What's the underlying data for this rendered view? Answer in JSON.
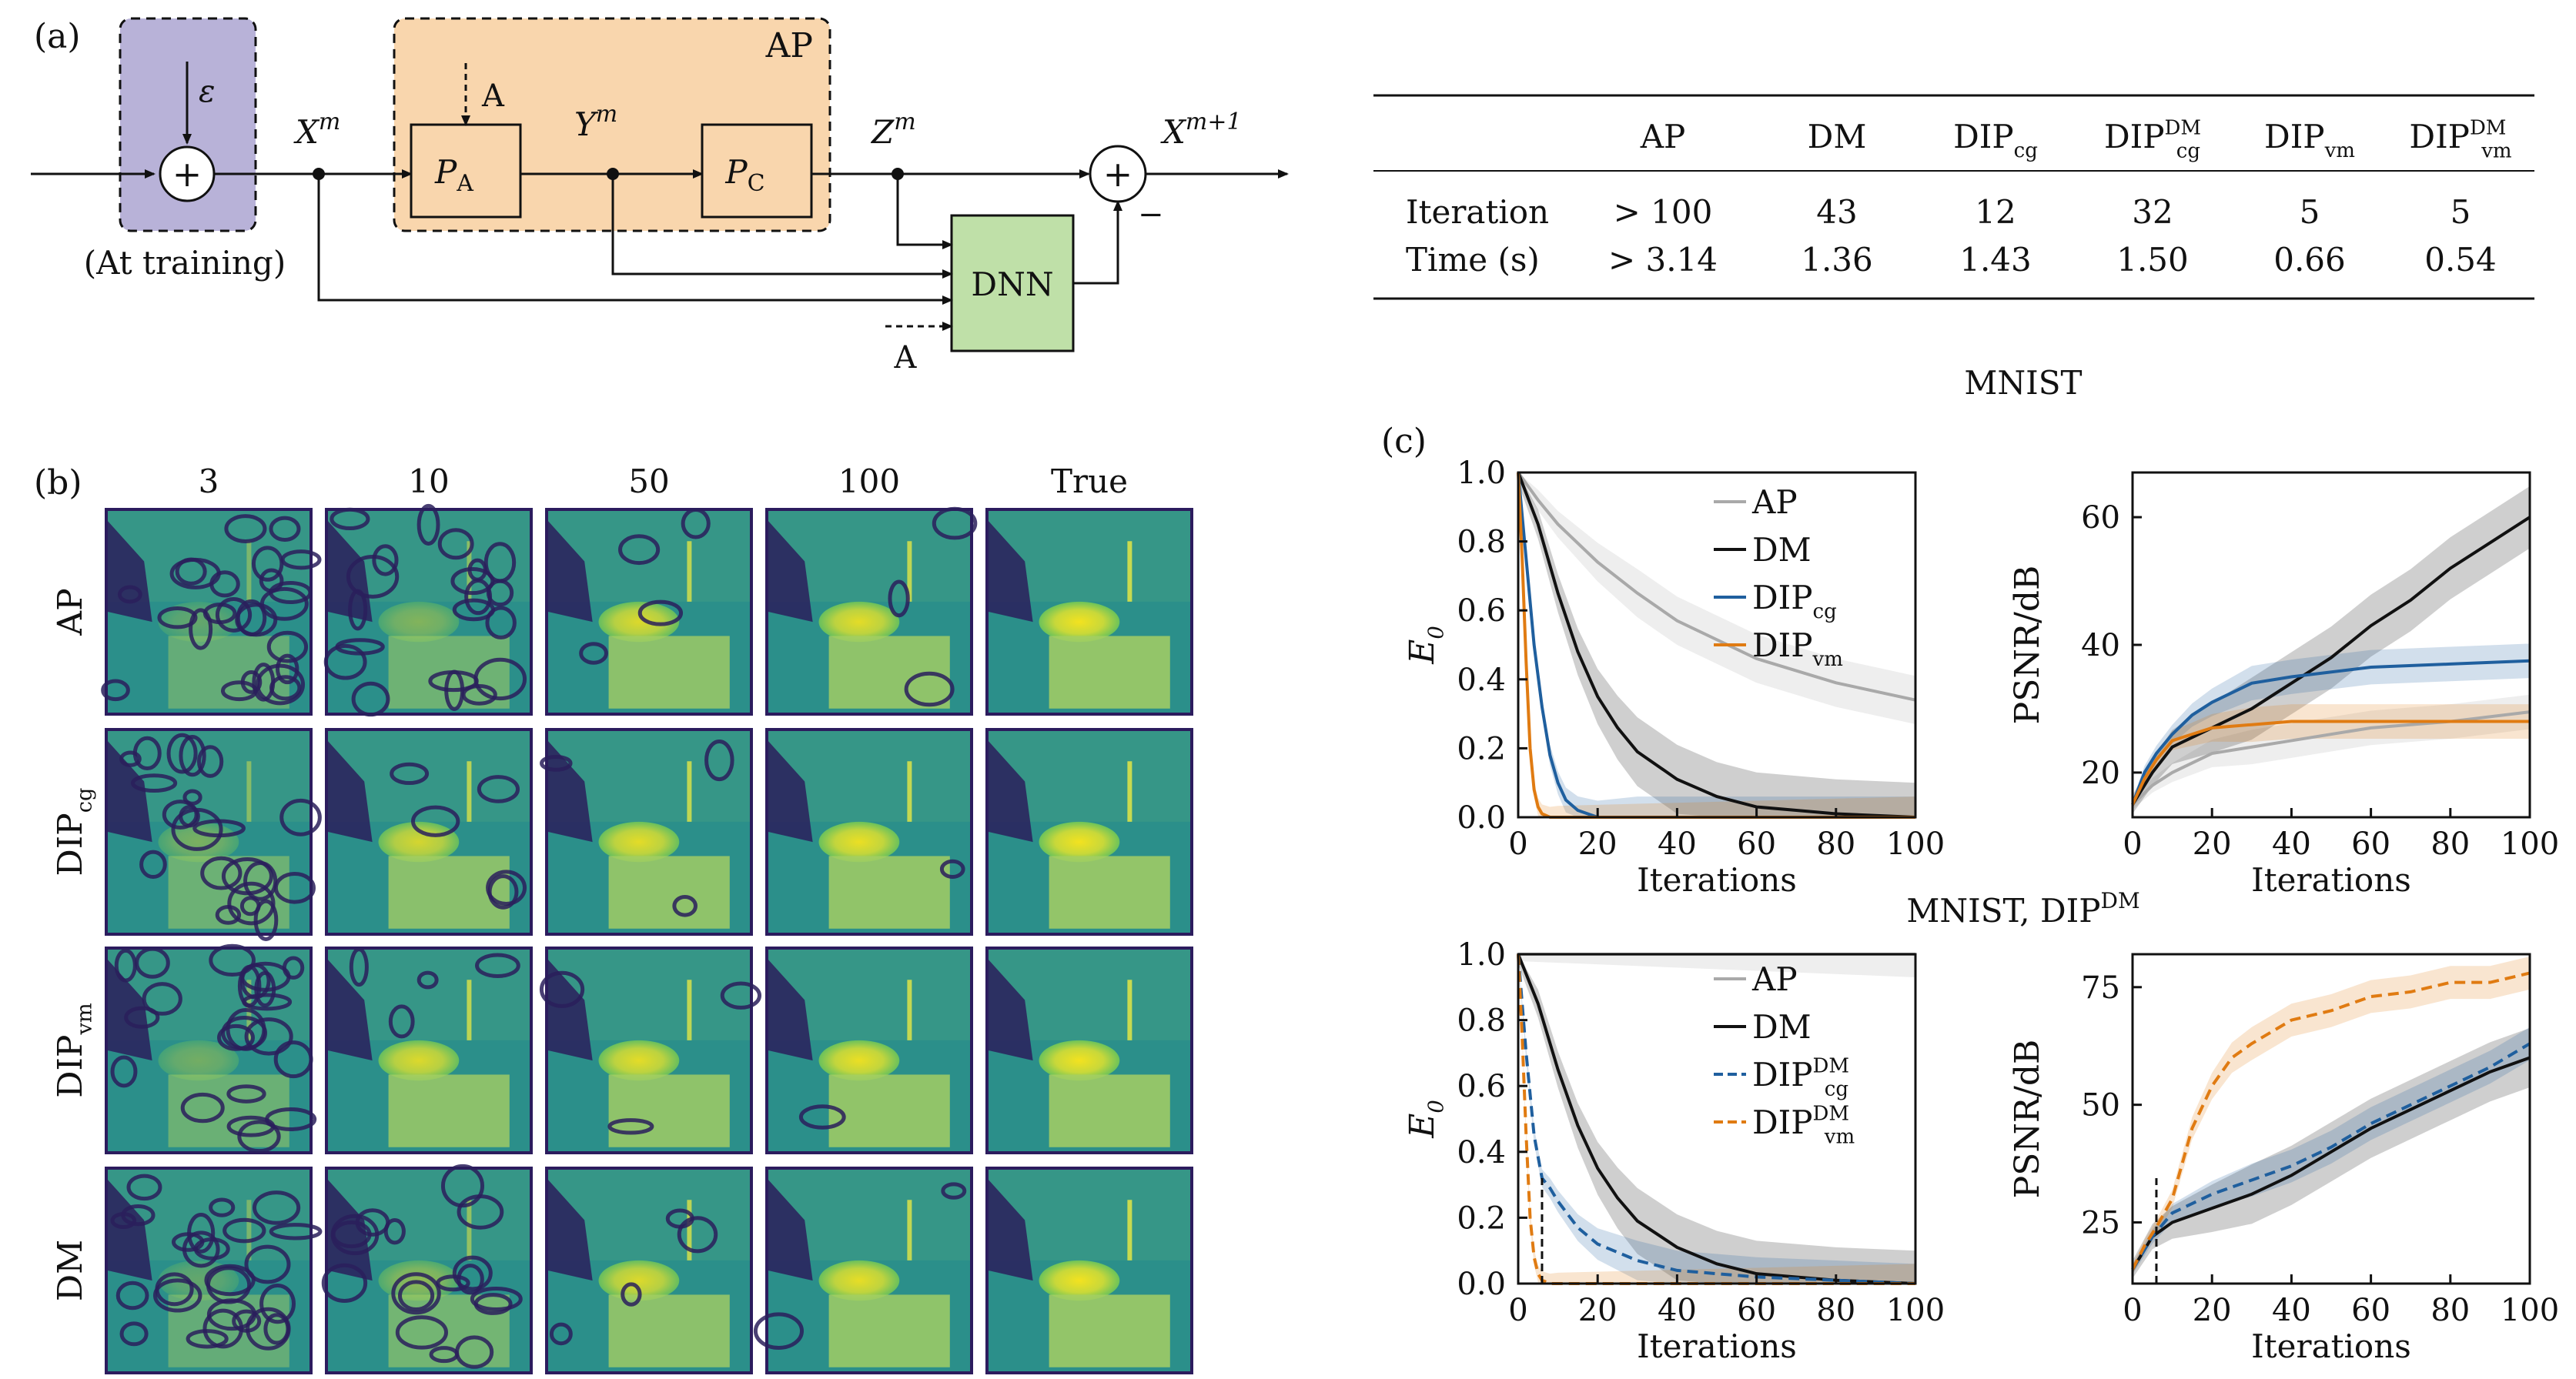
{
  "panel_a": {
    "label": "(a)",
    "box_ap": "AP",
    "eps": "ε",
    "training_note": "(At training)",
    "x_m": "X",
    "x_m_sup": "m",
    "y_m": "Y",
    "y_m_sup": "m",
    "z_m": "Z",
    "z_m_sup": "m",
    "x_next": "X",
    "x_next_sup": "m+1",
    "pa": "P",
    "pa_sub": "A",
    "pc": "P",
    "pc_sub": "C",
    "dnn": "DNN",
    "a_top": "A",
    "a_bottom": "A",
    "plus": "+",
    "minus": "−"
  },
  "table": {
    "headers": [
      "AP",
      "DM",
      "DIP",
      "DIP",
      "DIP",
      "DIP"
    ],
    "header_subs": [
      "",
      "",
      "cg",
      "cg",
      "vm",
      "vm"
    ],
    "header_sups": [
      "",
      "",
      "",
      "DM",
      "",
      "DM"
    ],
    "row_labels": [
      "Iteration",
      "Time (s)"
    ],
    "rows": [
      [
        "> 100",
        "43",
        "12",
        "32",
        "5",
        "5"
      ],
      [
        "> 3.14",
        "1.36",
        "1.43",
        "1.50",
        "0.66",
        "0.54"
      ]
    ]
  },
  "panel_b": {
    "label": "(b)",
    "col_headers": [
      "3",
      "10",
      "50",
      "100",
      "True"
    ],
    "row_labels": [
      "AP",
      "DIP",
      "DIP",
      "DM"
    ],
    "row_subs": [
      "",
      "cg",
      "vm",
      ""
    ]
  },
  "panel_c": {
    "label": "(c)",
    "title_top": "MNIST",
    "title_bottom": "MNIST, DIP",
    "title_bottom_sup": "DM",
    "xlabel": "Iterations",
    "ylabel_e": "E",
    "ylabel_e_sub": "0",
    "ylabel_psnr": "PSNR/dB",
    "legend_top": [
      {
        "name": "AP",
        "sub": "",
        "sup": ""
      },
      {
        "name": "DM",
        "sub": "",
        "sup": ""
      },
      {
        "name": "DIP",
        "sub": "cg",
        "sup": ""
      },
      {
        "name": "DIP",
        "sub": "vm",
        "sup": ""
      }
    ],
    "legend_bottom": [
      {
        "name": "AP",
        "sub": "",
        "sup": ""
      },
      {
        "name": "DM",
        "sub": "",
        "sup": ""
      },
      {
        "name": "DIP",
        "sub": "cg",
        "sup": "DM"
      },
      {
        "name": "DIP",
        "sub": "vm",
        "sup": "DM"
      }
    ]
  },
  "colors": {
    "ap_box": "#b8b2d8",
    "proj_box": "#f9d6ad",
    "dnn_box": "#bfe0a8",
    "ap": "#a9a9a9",
    "dm": "#111111",
    "cg": "#1f5f9e",
    "vm": "#e07b12"
  },
  "chart_data": [
    {
      "type": "line",
      "title": "MNIST",
      "xlabel": "Iterations",
      "ylabel": "E0",
      "xlim": [
        0,
        100
      ],
      "ylim": [
        0,
        1.0
      ],
      "xticks": [
        0,
        20,
        40,
        60,
        80,
        100
      ],
      "yticks": [
        0,
        0.2,
        0.4,
        0.6,
        0.8,
        1.0
      ],
      "legend": "top-right",
      "series": [
        {
          "name": "AP",
          "x": [
            0,
            5,
            10,
            20,
            30,
            40,
            60,
            80,
            100
          ],
          "y": [
            1.0,
            0.92,
            0.85,
            0.74,
            0.65,
            0.57,
            0.46,
            0.39,
            0.34
          ]
        },
        {
          "name": "DM",
          "x": [
            0,
            5,
            10,
            15,
            20,
            25,
            30,
            40,
            50,
            60,
            70,
            80,
            100
          ],
          "y": [
            1.0,
            0.85,
            0.65,
            0.48,
            0.35,
            0.26,
            0.19,
            0.11,
            0.06,
            0.03,
            0.02,
            0.01,
            0.0
          ]
        },
        {
          "name": "DIPcg",
          "x": [
            0,
            2,
            4,
            6,
            8,
            10,
            12,
            15,
            20,
            30,
            100
          ],
          "y": [
            1.0,
            0.75,
            0.5,
            0.32,
            0.18,
            0.1,
            0.05,
            0.02,
            0.0,
            0.0,
            0.0
          ]
        },
        {
          "name": "DIPvm",
          "x": [
            0,
            1,
            2,
            3,
            4,
            5,
            6,
            8,
            10,
            100
          ],
          "y": [
            1.0,
            0.75,
            0.45,
            0.2,
            0.08,
            0.03,
            0.01,
            0.0,
            0.0,
            0.0
          ]
        }
      ]
    },
    {
      "type": "line",
      "title": "MNIST",
      "xlabel": "Iterations",
      "ylabel": "PSNR/dB",
      "xlim": [
        0,
        100
      ],
      "ylim": [
        13,
        67
      ],
      "xticks": [
        0,
        20,
        40,
        60,
        80,
        100
      ],
      "yticks": [
        20,
        40,
        60
      ],
      "series": [
        {
          "name": "AP",
          "x": [
            0,
            5,
            10,
            20,
            30,
            40,
            60,
            80,
            100
          ],
          "y": [
            15,
            18,
            20,
            23,
            24,
            25,
            27,
            28,
            29.5
          ]
        },
        {
          "name": "DM",
          "x": [
            0,
            5,
            10,
            20,
            30,
            40,
            50,
            60,
            70,
            80,
            90,
            100
          ],
          "y": [
            15,
            20,
            24,
            27,
            30,
            34,
            38,
            43,
            47,
            52,
            56,
            60
          ]
        },
        {
          "name": "DIPcg",
          "x": [
            0,
            3,
            6,
            10,
            15,
            20,
            30,
            40,
            60,
            80,
            100
          ],
          "y": [
            15,
            20,
            23,
            26,
            29,
            31,
            34,
            35,
            36.5,
            37,
            37.5
          ]
        },
        {
          "name": "DIPvm",
          "x": [
            0,
            3,
            6,
            10,
            15,
            20,
            30,
            40,
            60,
            80,
            100
          ],
          "y": [
            15,
            19,
            22,
            25,
            26,
            27,
            27.5,
            28,
            28,
            28,
            28
          ]
        }
      ]
    },
    {
      "type": "line",
      "title": "MNIST, DIPDM",
      "xlabel": "Iterations",
      "ylabel": "E0",
      "xlim": [
        0,
        100
      ],
      "ylim": [
        0,
        1.0
      ],
      "xticks": [
        0,
        20,
        40,
        60,
        80,
        100
      ],
      "yticks": [
        0,
        0.2,
        0.4,
        0.6,
        0.8,
        1.0
      ],
      "legend": "top-right",
      "series": [
        {
          "name": "AP",
          "x": [
            0,
            100
          ],
          "y": [
            1.0,
            1.0
          ]
        },
        {
          "name": "DM",
          "x": [
            0,
            5,
            10,
            15,
            20,
            25,
            30,
            40,
            50,
            60,
            70,
            80,
            100
          ],
          "y": [
            1.0,
            0.85,
            0.65,
            0.48,
            0.35,
            0.26,
            0.19,
            0.11,
            0.06,
            0.03,
            0.02,
            0.01,
            0.0
          ]
        },
        {
          "name": "DIPcgDM",
          "x": [
            0,
            2,
            4,
            6,
            8,
            10,
            15,
            20,
            30,
            40,
            60,
            80,
            100
          ],
          "y": [
            1.0,
            0.7,
            0.45,
            0.32,
            0.29,
            0.25,
            0.17,
            0.12,
            0.07,
            0.04,
            0.02,
            0.01,
            0.0
          ]
        },
        {
          "name": "DIPvmDM",
          "x": [
            0,
            1,
            2,
            3,
            4,
            5,
            6,
            8,
            10,
            100
          ],
          "y": [
            1.0,
            0.75,
            0.45,
            0.2,
            0.08,
            0.03,
            0.01,
            0.0,
            0.0,
            0.0
          ]
        }
      ]
    },
    {
      "type": "line",
      "title": "MNIST, DIPDM",
      "xlabel": "Iterations",
      "ylabel": "PSNR/dB",
      "xlim": [
        0,
        100
      ],
      "ylim": [
        12,
        82
      ],
      "xticks": [
        0,
        20,
        40,
        60,
        80,
        100
      ],
      "yticks": [
        25,
        50,
        75
      ],
      "series": [
        {
          "name": "DM",
          "x": [
            0,
            5,
            10,
            20,
            30,
            40,
            50,
            60,
            70,
            80,
            90,
            100
          ],
          "y": [
            15,
            22,
            25,
            28,
            31,
            35,
            40,
            45,
            49,
            53,
            57,
            60
          ]
        },
        {
          "name": "DIPcgDM",
          "x": [
            0,
            5,
            10,
            20,
            30,
            40,
            50,
            60,
            70,
            80,
            90,
            100
          ],
          "y": [
            15,
            22,
            27,
            31,
            34,
            37,
            41,
            46,
            50,
            54,
            58,
            63
          ]
        },
        {
          "name": "DIPvmDM",
          "x": [
            0,
            3,
            6,
            10,
            15,
            20,
            25,
            30,
            40,
            50,
            60,
            70,
            80,
            90,
            100
          ],
          "y": [
            15,
            20,
            24,
            30,
            45,
            54,
            60,
            63,
            68,
            70,
            73,
            74,
            76,
            76,
            78
          ]
        }
      ]
    }
  ]
}
